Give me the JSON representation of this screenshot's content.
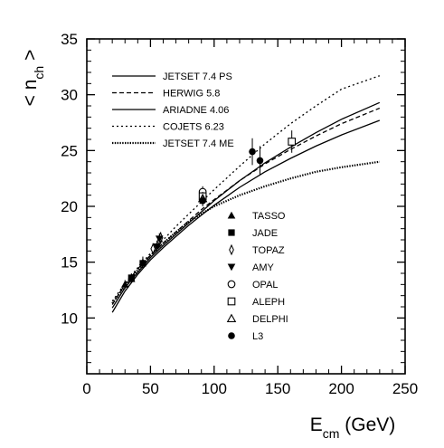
{
  "chart_data": {
    "type": "line",
    "ylabel": "< n_ch >",
    "xlabel": "E_cm (GeV)",
    "xlim": [
      0,
      250
    ],
    "ylim": [
      5,
      35
    ],
    "x_ticks": [
      0,
      50,
      100,
      150,
      200,
      250
    ],
    "y_ticks": [
      10,
      15,
      20,
      25,
      30,
      35
    ],
    "grid": false,
    "legend_placement": "top-left",
    "series": [
      {
        "name": "JETSET 7.4 PS",
        "style": "solid",
        "x": [
          20,
          30,
          40,
          50,
          60,
          70,
          80,
          91,
          100,
          120,
          140,
          160,
          180,
          200,
          230
        ],
        "y": [
          10.9,
          12.7,
          14.1,
          15.4,
          16.5,
          17.5,
          18.5,
          19.6,
          20.5,
          22.3,
          23.9,
          25.3,
          26.6,
          27.8,
          29.3
        ]
      },
      {
        "name": "HERWIG 5.8",
        "style": "dashed",
        "x": [
          20,
          30,
          40,
          50,
          60,
          70,
          80,
          91,
          100,
          120,
          140,
          160,
          180,
          200,
          230
        ],
        "y": [
          11.2,
          13.0,
          14.4,
          15.6,
          16.7,
          17.7,
          18.7,
          19.8,
          20.6,
          22.3,
          23.8,
          25.1,
          26.3,
          27.4,
          28.8
        ]
      },
      {
        "name": "ARIADNE 4.06",
        "style": "solid",
        "x": [
          20,
          30,
          40,
          50,
          60,
          70,
          80,
          91,
          100,
          120,
          140,
          160,
          180,
          200,
          230
        ],
        "y": [
          10.5,
          12.4,
          13.9,
          15.2,
          16.3,
          17.3,
          18.3,
          19.3,
          20.1,
          21.7,
          23.1,
          24.3,
          25.4,
          26.4,
          27.7
        ]
      },
      {
        "name": "COJETS 6.23",
        "style": "dotted",
        "x": [
          20,
          30,
          40,
          50,
          60,
          70,
          80,
          91,
          100,
          120,
          140,
          160,
          180,
          200,
          230
        ],
        "y": [
          11.5,
          13.1,
          14.5,
          15.8,
          17.0,
          18.2,
          19.3,
          20.5,
          21.5,
          23.6,
          25.6,
          27.4,
          29.0,
          30.5,
          31.7
        ]
      },
      {
        "name": "JETSET 7.4 ME",
        "style": "densely-dotted",
        "x": [
          20,
          30,
          40,
          50,
          60,
          70,
          80,
          91,
          100,
          120,
          140,
          160,
          180,
          200,
          230
        ],
        "y": [
          11.3,
          12.9,
          14.3,
          15.6,
          16.7,
          17.7,
          18.6,
          19.4,
          20.0,
          21.0,
          21.8,
          22.5,
          23.1,
          23.5,
          24.0
        ]
      }
    ],
    "experiments": [
      {
        "name": "TASSO",
        "marker": "filled-triangle-up",
        "points": [
          {
            "x": 30,
            "y": 13.0,
            "err": 0.4
          },
          {
            "x": 35,
            "y": 13.5,
            "err": 0.4
          },
          {
            "x": 44,
            "y": 15.0,
            "err": 0.5
          }
        ]
      },
      {
        "name": "JADE",
        "marker": "filled-square",
        "points": [
          {
            "x": 35,
            "y": 13.6,
            "err": 0.4
          },
          {
            "x": 44,
            "y": 14.9,
            "err": 0.5
          }
        ]
      },
      {
        "name": "TOPAZ",
        "marker": "thin-diamond",
        "points": [
          {
            "x": 52,
            "y": 16.2,
            "err": 0.5
          },
          {
            "x": 57,
            "y": 16.9,
            "err": 0.5
          },
          {
            "x": 58,
            "y": 17.2,
            "err": 0.5
          }
        ]
      },
      {
        "name": "AMY",
        "marker": "filled-triangle-down",
        "points": [
          {
            "x": 55,
            "y": 16.4,
            "err": 0.5
          },
          {
            "x": 57,
            "y": 17.1,
            "err": 0.5
          }
        ]
      },
      {
        "name": "OPAL",
        "marker": "open-circle",
        "points": [
          {
            "x": 91,
            "y": 21.3,
            "err": 0.5
          }
        ]
      },
      {
        "name": "ALEPH",
        "marker": "open-square",
        "points": [
          {
            "x": 91,
            "y": 20.9,
            "err": 0.4
          },
          {
            "x": 161,
            "y": 25.8,
            "err": 1.0
          }
        ]
      },
      {
        "name": "DELPHI",
        "marker": "open-triangle-up",
        "points": [
          {
            "x": 91,
            "y": 20.7,
            "err": 0.4
          }
        ]
      },
      {
        "name": "L3",
        "marker": "filled-circle",
        "points": [
          {
            "x": 91,
            "y": 20.5,
            "err": 0.5
          },
          {
            "x": 130,
            "y": 24.9,
            "err": 1.2
          },
          {
            "x": 136,
            "y": 24.1,
            "err": 1.3
          }
        ]
      }
    ]
  }
}
